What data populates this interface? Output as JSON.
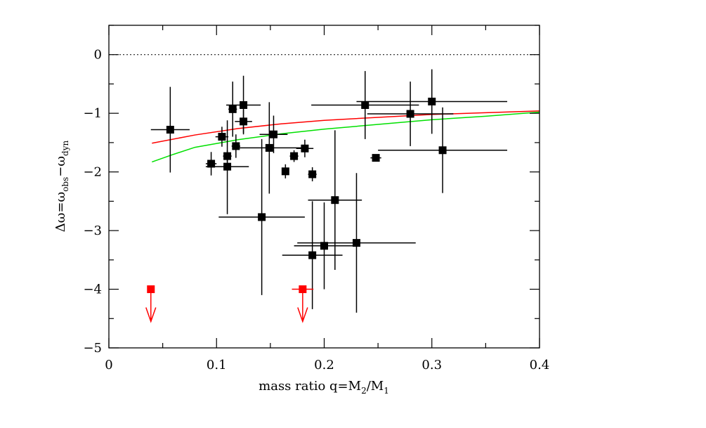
{
  "chart_data": {
    "type": "scatter",
    "title": "",
    "xlabel": {
      "main": "mass ratio q=M",
      "sub1": "2",
      "mid": "/M",
      "sub2": "1"
    },
    "ylabel": {
      "main": "Δω=ω",
      "sub1": "obs",
      "mid": "−ω",
      "sub2": "dyn"
    },
    "xlim": [
      0,
      0.4
    ],
    "ylim": [
      -5,
      0.5
    ],
    "xticks": [
      "0",
      "0.1",
      "0.2",
      "0.3",
      "0.4"
    ],
    "yticks": [
      "0",
      "−1",
      "−2",
      "−3",
      "−4",
      "−5"
    ],
    "grid": false,
    "reference_line": {
      "y": 0,
      "style": "dotted"
    },
    "points": [
      {
        "x": 0.057,
        "y": -1.28,
        "xerr": 0.018,
        "yerr": [
          0.73,
          0.73
        ]
      },
      {
        "x": 0.095,
        "y": -1.86,
        "xerr": 0.005,
        "yerr": [
          0.2,
          0.2
        ]
      },
      {
        "x": 0.105,
        "y": -1.4,
        "xerr": 0.006,
        "yerr": [
          0.17,
          0.17
        ]
      },
      {
        "x": 0.11,
        "y": -1.73,
        "xerr": 0.004,
        "yerr": [
          0.1,
          0.1
        ]
      },
      {
        "x": 0.11,
        "y": -1.91,
        "xerr": 0.02,
        "yerr": [
          0.81,
          0.79
        ]
      },
      {
        "x": 0.115,
        "y": -0.93,
        "xerr": 0.004,
        "yerr": [
          0.47,
          0.47
        ]
      },
      {
        "x": 0.118,
        "y": -1.56,
        "xerr": 0.004,
        "yerr": [
          0.2,
          0.2
        ]
      },
      {
        "x": 0.125,
        "y": -0.86,
        "xerr": 0.016,
        "yerr": [
          0.5,
          0.5
        ]
      },
      {
        "x": 0.125,
        "y": -1.14,
        "xerr": 0.008,
        "yerr": [
          0.2,
          0.2
        ]
      },
      {
        "x": 0.142,
        "y": -2.77,
        "xerr": 0.04,
        "yerr": [
          1.33,
          1.33
        ]
      },
      {
        "x": 0.149,
        "y": -1.59,
        "xerr": 0.034,
        "yerr": [
          0.78,
          0.78
        ]
      },
      {
        "x": 0.153,
        "y": -1.36,
        "xerr": 0.013,
        "yerr": [
          0.32,
          0.32
        ]
      },
      {
        "x": 0.164,
        "y": -1.99,
        "xerr": 0.003,
        "yerr": [
          0.12,
          0.12
        ]
      },
      {
        "x": 0.172,
        "y": -1.73,
        "xerr": 0.004,
        "yerr": [
          0.1,
          0.1
        ]
      },
      {
        "x": 0.182,
        "y": -1.6,
        "xerr": 0.008,
        "yerr": [
          0.15,
          0.15
        ]
      },
      {
        "x": 0.189,
        "y": -2.04,
        "xerr": 0.004,
        "yerr": [
          0.12,
          0.12
        ]
      },
      {
        "x": 0.189,
        "y": -3.42,
        "xerr": 0.028,
        "yerr": [
          0.92,
          0.92
        ]
      },
      {
        "x": 0.2,
        "y": -3.26,
        "xerr": 0.028,
        "yerr": [
          0.74,
          0.74
        ]
      },
      {
        "x": 0.21,
        "y": -2.48,
        "xerr": 0.025,
        "yerr": [
          1.19,
          1.19
        ]
      },
      {
        "x": 0.23,
        "y": -3.21,
        "xerr": 0.055,
        "yerr": [
          1.19,
          1.19
        ]
      },
      {
        "x": 0.238,
        "y": -0.86,
        "xerr": 0.05,
        "yerr": [
          0.58,
          0.58
        ]
      },
      {
        "x": 0.248,
        "y": -1.76,
        "xerr": 0.005,
        "yerr": [
          0.05,
          0.05
        ]
      },
      {
        "x": 0.28,
        "y": -1.01,
        "xerr": 0.04,
        "yerr": [
          0.55,
          0.55
        ]
      },
      {
        "x": 0.3,
        "y": -0.8,
        "xerr": 0.07,
        "yerr": [
          0.55,
          0.55
        ]
      },
      {
        "x": 0.31,
        "y": -1.63,
        "xerr": 0.06,
        "yerr": [
          0.73,
          0.73
        ]
      }
    ],
    "upper_limits": [
      {
        "x": 0.039,
        "y": -4.0,
        "xerr": 0.0,
        "arrow_to": -4.55
      },
      {
        "x": 0.18,
        "y": -4.0,
        "xerr": 0.01,
        "arrow_to": -4.55
      }
    ],
    "curves": [
      {
        "color": "#ff0000",
        "x": [
          0.04,
          0.08,
          0.12,
          0.16,
          0.2,
          0.25,
          0.3,
          0.35,
          0.4
        ],
        "y": [
          -1.51,
          -1.37,
          -1.26,
          -1.18,
          -1.12,
          -1.07,
          -1.02,
          -0.99,
          -0.96
        ]
      },
      {
        "color": "#00e000",
        "x": [
          0.04,
          0.06,
          0.08,
          0.12,
          0.16,
          0.2,
          0.25,
          0.3,
          0.35,
          0.4
        ],
        "y": [
          -1.83,
          -1.7,
          -1.58,
          -1.45,
          -1.35,
          -1.27,
          -1.19,
          -1.11,
          -1.05,
          -0.98
        ]
      }
    ],
    "colors": {
      "points": "#000000",
      "limits": "#ff0000"
    }
  }
}
